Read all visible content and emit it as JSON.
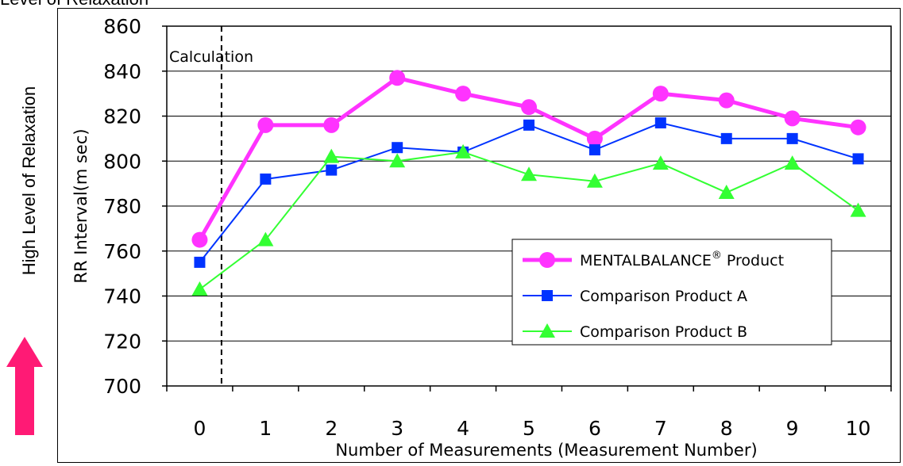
{
  "page": {
    "top_title": "Level of Relaxation",
    "side_label": "High Level of Relaxation"
  },
  "colors": {
    "arrow": "#ff1a75",
    "series_a": "#ff33ff",
    "series_b": "#0033ff",
    "series_c": "#33ff33"
  },
  "chart_data": {
    "type": "line",
    "x": [
      0,
      1,
      2,
      3,
      4,
      5,
      6,
      7,
      8,
      9,
      10
    ],
    "xlabel": "Number of Measurements (Measurement Number)",
    "ylabel": "RR Interval(m sec)",
    "ylim": [
      700,
      860
    ],
    "yticks": [
      700,
      720,
      740,
      760,
      780,
      800,
      820,
      840,
      860
    ],
    "grid": true,
    "legend_position": "bottom-right",
    "annotation": "Calculation",
    "series": [
      {
        "name": "MENTALBALANCE® Product",
        "legend_main": "MENTALBALANCE",
        "legend_sup": "®",
        "legend_rest": " Product",
        "marker": "circle",
        "color": "#ff33ff",
        "values": [
          765,
          816,
          816,
          837,
          830,
          824,
          810,
          830,
          827,
          819,
          815
        ]
      },
      {
        "name": "Comparison Product A",
        "marker": "square",
        "color": "#0033ff",
        "values": [
          755,
          792,
          796,
          806,
          804,
          816,
          805,
          817,
          810,
          810,
          801
        ]
      },
      {
        "name": "Comparison Product B",
        "marker": "triangle",
        "color": "#33ff33",
        "values": [
          743,
          765,
          802,
          800,
          804,
          794,
          791,
          799,
          786,
          799,
          778
        ]
      }
    ]
  }
}
